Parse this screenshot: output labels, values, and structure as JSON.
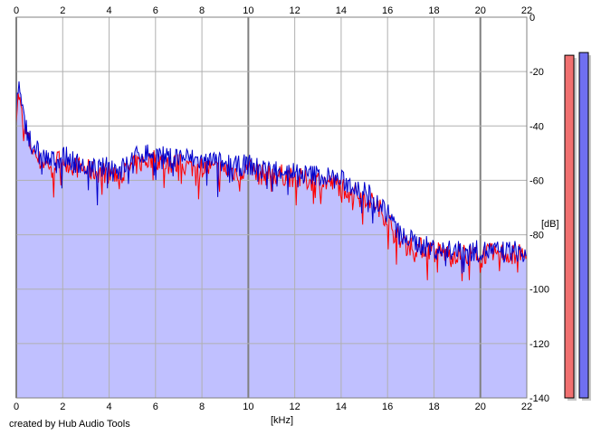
{
  "chart_data": {
    "type": "area",
    "xlabel": "[kHz]",
    "ylabel": "[dB]",
    "xlim": [
      0,
      22
    ],
    "ylim": [
      -140,
      0
    ],
    "x_ticks": [
      0,
      2,
      4,
      6,
      8,
      10,
      12,
      14,
      16,
      18,
      20,
      22
    ],
    "y_ticks": [
      0,
      -20,
      -40,
      -60,
      -80,
      -100,
      -120,
      -140
    ],
    "y_tick_labels": [
      "0",
      "-20",
      "-40",
      "-60",
      "-80",
      "-100",
      "-120",
      "-140"
    ],
    "grid": true,
    "colors": {
      "fill": "#c0c0ff",
      "red": "#ff0000",
      "blue": "#0000cc",
      "grid": "#b0b0b0",
      "grid_major": "#808080"
    },
    "x": [
      0,
      0.1,
      0.3,
      0.6,
      1.0,
      1.5,
      2.0,
      2.5,
      3.0,
      3.5,
      4.0,
      4.5,
      5.0,
      5.5,
      6.0,
      6.5,
      7.0,
      7.5,
      8.0,
      8.5,
      9.0,
      9.5,
      10.0,
      10.5,
      11.0,
      11.5,
      12.0,
      12.5,
      13.0,
      13.5,
      14.0,
      14.5,
      15.0,
      15.5,
      16.0,
      16.5,
      17.0,
      17.5,
      18.0,
      18.5,
      19.0,
      19.5,
      20.0,
      20.5,
      21.0,
      21.5,
      22.0
    ],
    "series": [
      {
        "color": "red",
        "values": [
          -35,
          -28,
          -40,
          -47,
          -53,
          -54,
          -52,
          -55,
          -56,
          -57,
          -57,
          -58,
          -55,
          -53,
          -52,
          -54,
          -54,
          -55,
          -55,
          -56,
          -56,
          -57,
          -56,
          -58,
          -58,
          -58,
          -59,
          -60,
          -60,
          -61,
          -62,
          -64,
          -66,
          -69,
          -74,
          -82,
          -84,
          -85,
          -86,
          -87,
          -87,
          -87,
          -87,
          -87,
          -87,
          -87,
          -88
        ]
      },
      {
        "color": "blue",
        "values": [
          -32,
          -25,
          -37,
          -45,
          -50,
          -53,
          -51,
          -53,
          -55,
          -56,
          -55,
          -56,
          -52,
          -50,
          -50,
          -52,
          -51,
          -52,
          -53,
          -53,
          -54,
          -55,
          -54,
          -56,
          -56,
          -56,
          -57,
          -58,
          -58,
          -59,
          -60,
          -62,
          -64,
          -67,
          -72,
          -80,
          -82,
          -84,
          -85,
          -86,
          -86,
          -86,
          -86,
          -86,
          -86,
          -86,
          -87
        ]
      }
    ],
    "level_meters": [
      {
        "color": "#f07070",
        "level_db": -14
      },
      {
        "color": "#7070f0",
        "level_db": -13
      }
    ]
  },
  "footer": {
    "credit": "created by Hub Audio Tools"
  }
}
